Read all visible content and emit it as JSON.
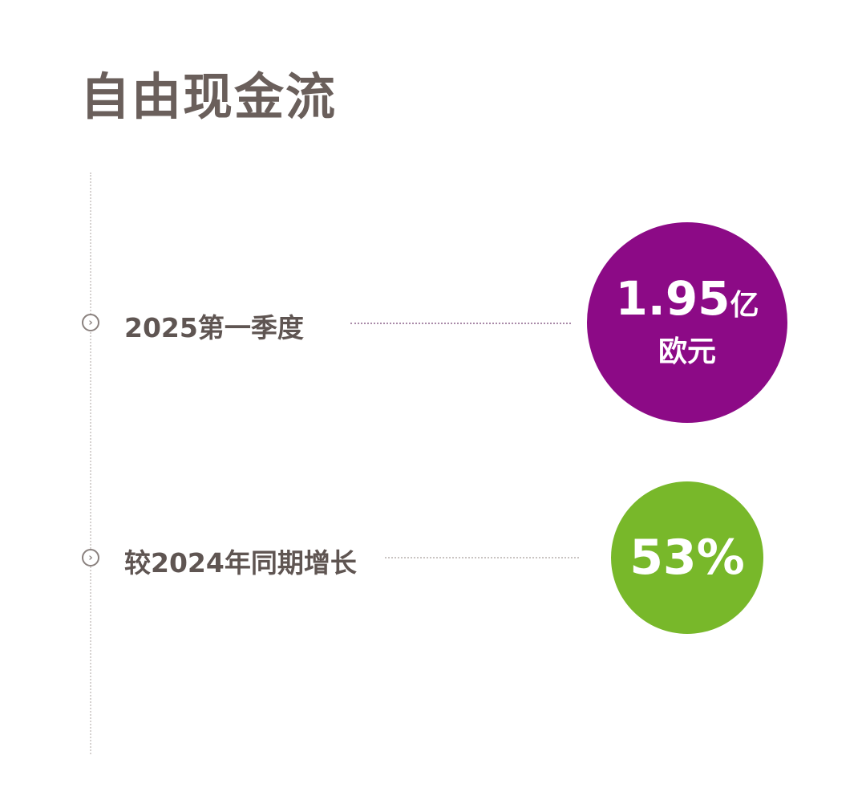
{
  "title": "自由现金流",
  "colors": {
    "purple": "#8c0a86",
    "green": "#78b82a",
    "text": "#5f5552"
  },
  "items": [
    {
      "label": "2025第一季度",
      "value": "1.95",
      "value_suffix": "亿",
      "unit": "欧元",
      "icon": "chevron-right-circle-icon"
    },
    {
      "label": "较2024年同期增长",
      "value": "53%",
      "icon": "chevron-right-circle-icon"
    }
  ]
}
